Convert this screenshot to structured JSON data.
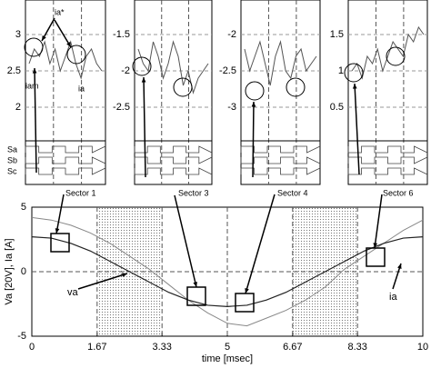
{
  "chart_data": [
    {
      "type": "line",
      "ylim": [
        1.6,
        3.4
      ],
      "yticks": [
        3,
        2.5,
        2
      ],
      "values": [
        2.6,
        2.8,
        2.7,
        2.9,
        2.6,
        2.8,
        2.5,
        2.7,
        2.9,
        2.6,
        2.4,
        2.7,
        2.8,
        2.6,
        2.5
      ],
      "annotations": [
        "ia*",
        "iam",
        "ia"
      ],
      "switch_labels": [
        "Sa",
        "Sb",
        "Sc"
      ]
    },
    {
      "type": "line",
      "ylim": [
        -2.9,
        -1.1
      ],
      "yticks": [
        -1.5,
        -2,
        -2.5
      ],
      "values": [
        -1.7,
        -1.9,
        -2.0,
        -1.6,
        -1.8,
        -2.1,
        -1.9,
        -1.6,
        -1.8,
        -2.2,
        -2.0,
        -2.3,
        -2.1,
        -2.0,
        -1.9
      ]
    },
    {
      "type": "line",
      "ylim": [
        -3.4,
        -1.6
      ],
      "yticks": [
        -2,
        -2.5,
        -3
      ],
      "values": [
        -2.2,
        -2.5,
        -2.3,
        -2.1,
        -2.4,
        -2.7,
        -2.3,
        -2.1,
        -2.5,
        -2.6,
        -2.3,
        -2.2,
        -2.5,
        -2.4,
        -2.3
      ]
    },
    {
      "type": "line",
      "ylim": [
        0.1,
        1.9
      ],
      "yticks": [
        1.5,
        1,
        0.5
      ],
      "values": [
        1.0,
        1.1,
        0.9,
        1.2,
        1.1,
        1.3,
        1.0,
        1.2,
        1.4,
        1.3,
        1.2,
        1.5,
        1.4,
        1.6,
        1.5
      ]
    },
    {
      "type": "line",
      "xlabel": "time [msec]",
      "ylabel": "Va [20V], Ia [A]",
      "xlim": [
        0,
        10
      ],
      "ylim": [
        -5,
        5
      ],
      "xticks": [
        0,
        1.67,
        3.33,
        5,
        6.67,
        8.33,
        10
      ],
      "yticks": [
        5,
        0,
        -5
      ],
      "grid": true,
      "sectors": [
        "Sector 1",
        "Sector 3",
        "Sector 4",
        "Sector 6"
      ],
      "x": [
        0,
        0.5,
        1,
        1.5,
        2,
        2.5,
        3,
        3.5,
        4,
        4.5,
        5,
        5.5,
        6,
        6.5,
        7,
        7.5,
        8,
        8.5,
        9,
        9.5,
        10
      ],
      "series": [
        {
          "name": "va",
          "color": "#888888",
          "values": [
            4.2,
            4.0,
            3.6,
            3.0,
            2.2,
            1.2,
            0.2,
            -1.0,
            -2.2,
            -3.2,
            -4.0,
            -4.2,
            -3.6,
            -3.0,
            -2.2,
            -1.2,
            0.2,
            1.2,
            2.2,
            3.2,
            4.0
          ]
        },
        {
          "name": "ia",
          "color": "#222222",
          "values": [
            2.7,
            2.6,
            2.2,
            1.6,
            0.8,
            0,
            -0.8,
            -1.6,
            -2.2,
            -2.6,
            -2.7,
            -2.6,
            -2.2,
            -1.6,
            -0.8,
            0,
            0.8,
            1.6,
            2.2,
            2.6,
            2.7
          ]
        }
      ]
    }
  ]
}
